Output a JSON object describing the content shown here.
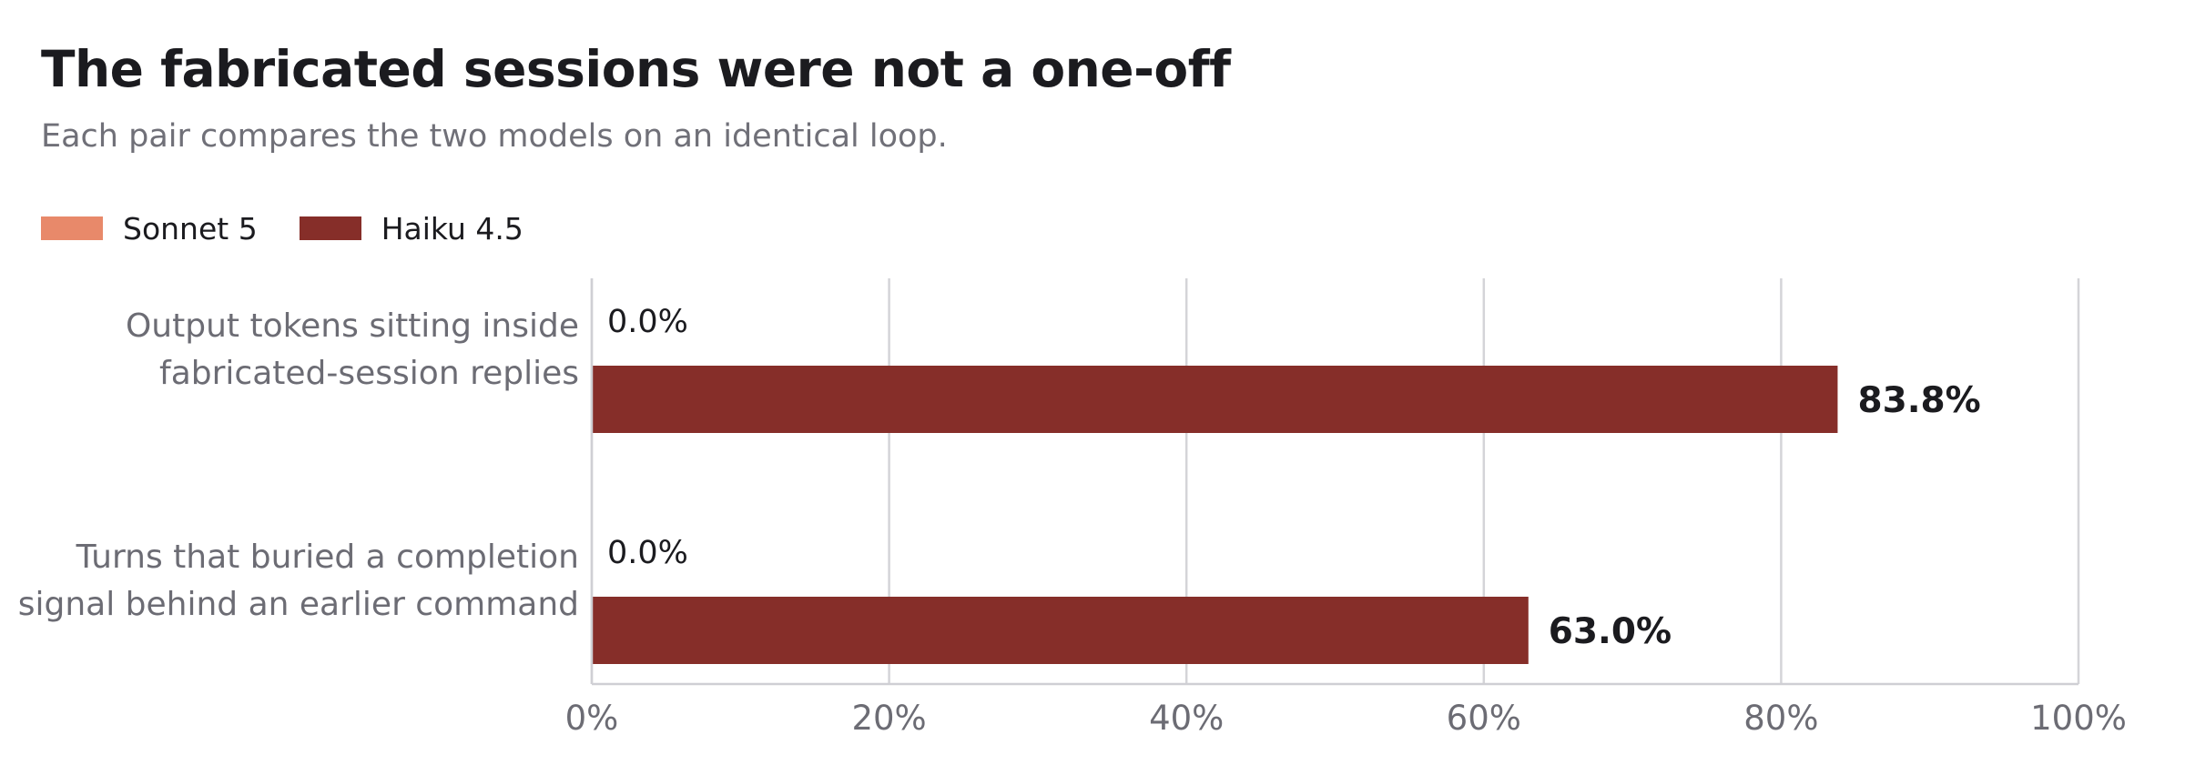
{
  "chart_data": {
    "type": "bar",
    "orientation": "horizontal",
    "title": "The fabricated sessions were not a one-off",
    "subtitle": "Each pair compares the two models on an identical loop.",
    "categories": [
      [
        "Output tokens sitting inside",
        "fabricated-session replies"
      ],
      [
        "Turns that buried a completion",
        "signal behind an earlier command"
      ]
    ],
    "series": [
      {
        "name": "Sonnet 5",
        "color": "#e8896a",
        "values": [
          0.0,
          0.0
        ],
        "labels": [
          "0.0%",
          "0.0%"
        ]
      },
      {
        "name": "Haiku 4.5",
        "color": "#862e29",
        "values": [
          83.8,
          63.0
        ],
        "labels": [
          "83.8%",
          "63.0%"
        ]
      }
    ],
    "xlim": [
      0,
      100
    ],
    "xticks": [
      0,
      20,
      40,
      60,
      80,
      100
    ],
    "xtick_labels": [
      "0%",
      "20%",
      "40%",
      "60%",
      "80%",
      "100%"
    ],
    "grid": true,
    "legend_position": "top-left"
  }
}
